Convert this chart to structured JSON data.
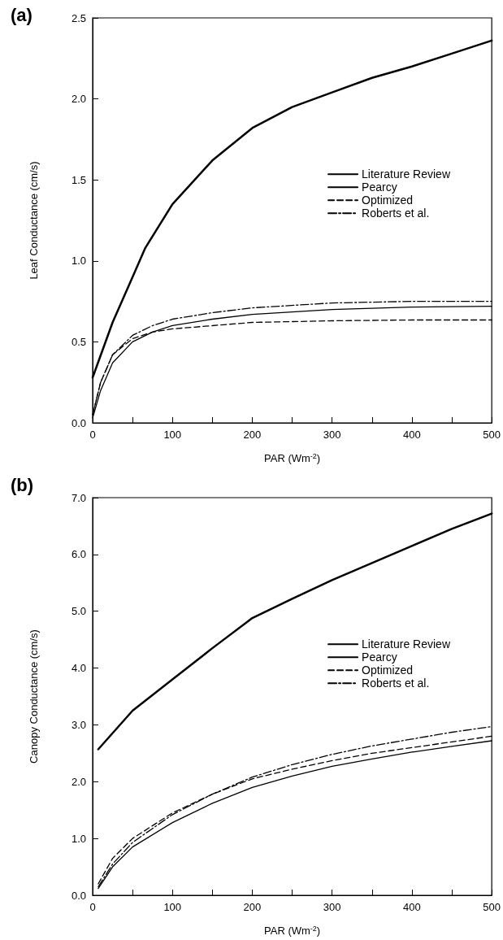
{
  "chart_data": [
    {
      "type": "line",
      "title": "(a)",
      "xlabel": "PAR (Wm$^{-2}$)",
      "ylabel": "Leaf Conductance (cm/s)",
      "legend": "right",
      "grid": false,
      "xlim": [
        0,
        500
      ],
      "xticks": [
        0,
        {
          "value": 50,
          "label": null
        },
        100,
        {
          "value": 150,
          "label": null
        },
        200,
        {
          "value": 250,
          "label": null
        },
        300,
        {
          "value": 350,
          "label": null
        },
        400,
        {
          "value": 450,
          "label": null
        },
        500
      ],
      "ylim": [
        0,
        2.5
      ],
      "yticks": [
        {
          "value": 0,
          "label": "0.0"
        },
        {
          "value": 0.5,
          "label": "0.5"
        },
        {
          "value": 1,
          "label": "1.0"
        },
        {
          "value": 1.5,
          "label": "1.5"
        },
        {
          "value": 2,
          "label": "2.0"
        },
        {
          "value": 2.5,
          "label": "2.5"
        }
      ],
      "series": [
        {
          "name": "Literature Review",
          "color": "#000000",
          "line_style": "solid",
          "x": [
            0,
            25,
            50,
            66,
            100,
            150,
            200,
            250,
            300,
            350,
            400,
            450,
            500
          ],
          "values": [
            0.28,
            0.62,
            0.9,
            1.08,
            1.35,
            1.62,
            1.82,
            1.95,
            2.04,
            2.13,
            2.2,
            2.28,
            2.36
          ]
        },
        {
          "name": "Pearcy",
          "color": "#000000",
          "line_style": "solid",
          "x": [
            0,
            10,
            25,
            50,
            75,
            100,
            150,
            200,
            300,
            400,
            500
          ],
          "values": [
            0.03,
            0.2,
            0.37,
            0.5,
            0.56,
            0.6,
            0.64,
            0.67,
            0.7,
            0.715,
            0.72
          ]
        },
        {
          "name": "Optimized",
          "color": "#000000",
          "line_style": "dashed",
          "x": [
            0,
            10,
            25,
            50,
            75,
            100,
            150,
            200,
            300,
            400,
            500
          ],
          "values": [
            0.05,
            0.25,
            0.42,
            0.52,
            0.56,
            0.58,
            0.6,
            0.62,
            0.63,
            0.635,
            0.635
          ]
        },
        {
          "name": "Roberts et al.",
          "color": "#000000",
          "line_style": "dashdot",
          "x": [
            0,
            10,
            25,
            50,
            75,
            100,
            150,
            200,
            300,
            400,
            500
          ],
          "values": [
            0.05,
            0.25,
            0.42,
            0.54,
            0.6,
            0.64,
            0.68,
            0.71,
            0.74,
            0.75,
            0.75
          ]
        }
      ]
    },
    {
      "type": "line",
      "title": "(b)",
      "xlabel": "PAR (Wm$^{-2}$)",
      "ylabel": "Canopy Conductance (cm/s)",
      "legend": "right",
      "grid": false,
      "xlim": [
        0,
        500
      ],
      "xticks": [
        0,
        {
          "value": 50,
          "label": null
        },
        100,
        {
          "value": 150,
          "label": null
        },
        200,
        {
          "value": 250,
          "label": null
        },
        300,
        {
          "value": 350,
          "label": null
        },
        400,
        {
          "value": 450,
          "label": null
        },
        500
      ],
      "ylim": [
        0,
        7
      ],
      "yticks": [
        {
          "value": 0,
          "label": "0.0"
        },
        {
          "value": 1,
          "label": "1.0"
        },
        {
          "value": 2,
          "label": "2.0"
        },
        {
          "value": 3,
          "label": "3.0"
        },
        {
          "value": 4,
          "label": "4.0"
        },
        {
          "value": 5,
          "label": "5.0"
        },
        {
          "value": 6,
          "label": "6.0"
        },
        {
          "value": 7,
          "label": "7.0"
        }
      ],
      "series": [
        {
          "name": "Literature Review",
          "color": "#000000",
          "line_style": "solid",
          "x": [
            7,
            50,
            100,
            150,
            200,
            250,
            300,
            350,
            400,
            450,
            500
          ],
          "values": [
            2.57,
            3.25,
            3.8,
            4.35,
            4.88,
            5.22,
            5.55,
            5.85,
            6.15,
            6.45,
            6.72
          ]
        },
        {
          "name": "Pearcy",
          "color": "#000000",
          "line_style": "solid",
          "x": [
            7,
            25,
            50,
            100,
            150,
            200,
            250,
            300,
            350,
            400,
            450,
            500
          ],
          "values": [
            0.12,
            0.5,
            0.85,
            1.28,
            1.62,
            1.9,
            2.1,
            2.27,
            2.4,
            2.52,
            2.62,
            2.72
          ]
        },
        {
          "name": "Optimized",
          "color": "#000000",
          "line_style": "dashed",
          "x": [
            7,
            25,
            50,
            100,
            150,
            200,
            250,
            300,
            350,
            400,
            450,
            500
          ],
          "values": [
            0.2,
            0.65,
            1.0,
            1.45,
            1.78,
            2.05,
            2.22,
            2.37,
            2.5,
            2.6,
            2.7,
            2.8
          ]
        },
        {
          "name": "Roberts et al.",
          "color": "#000000",
          "line_style": "dashdot",
          "x": [
            7,
            25,
            50,
            100,
            150,
            200,
            250,
            300,
            350,
            400,
            450,
            500
          ],
          "values": [
            0.15,
            0.55,
            0.93,
            1.42,
            1.78,
            2.08,
            2.3,
            2.48,
            2.63,
            2.75,
            2.87,
            2.97
          ]
        }
      ]
    }
  ]
}
